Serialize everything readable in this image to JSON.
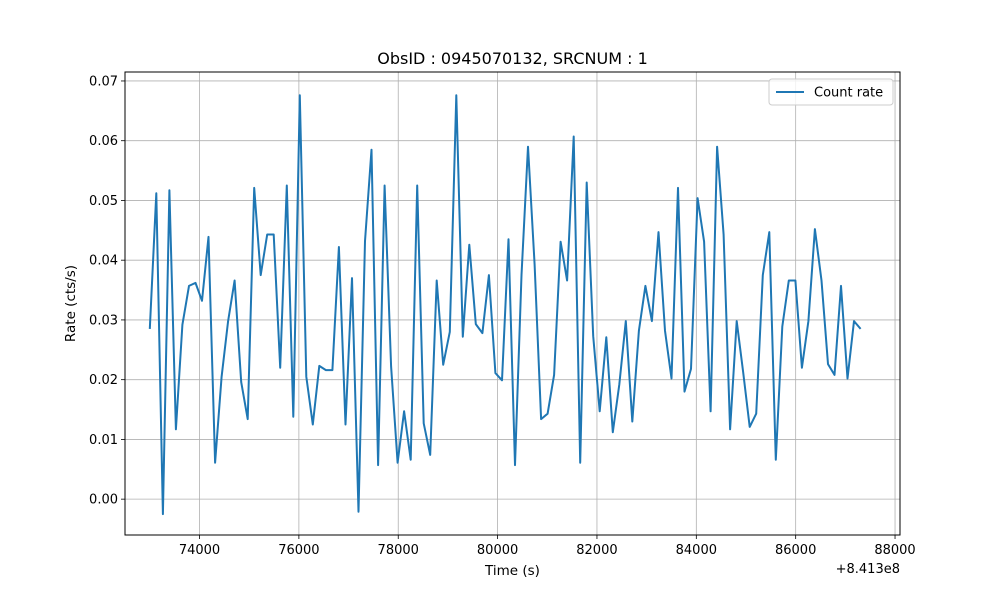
{
  "chart_data": {
    "type": "line",
    "title": "ObsID : 0945070132, SRCNUM : 1",
    "xlabel": "Time (s)",
    "ylabel": "Rate (cts/s)",
    "x_offset_label": "+8.413e8",
    "xlim": [
      72500,
      88100
    ],
    "ylim": [
      -0.006,
      0.0715
    ],
    "xticks": [
      74000,
      76000,
      78000,
      80000,
      82000,
      84000,
      86000,
      88000
    ],
    "xtick_labels": [
      "74000",
      "76000",
      "78000",
      "80000",
      "82000",
      "84000",
      "86000",
      "88000"
    ],
    "yticks": [
      0.0,
      0.01,
      0.02,
      0.03,
      0.04,
      0.05,
      0.06,
      0.07
    ],
    "ytick_labels": [
      "0.00",
      "0.01",
      "0.02",
      "0.03",
      "0.04",
      "0.05",
      "0.06",
      "0.07"
    ],
    "grid": true,
    "legend_position": "top-right",
    "series": [
      {
        "name": "Count rate",
        "color": "#1f77b4",
        "x": [
          73000,
          73131,
          73262,
          73394,
          73525,
          73656,
          73788,
          73919,
          74050,
          74181,
          74313,
          74444,
          74575,
          74706,
          74838,
          74969,
          75100,
          75231,
          75363,
          75494,
          75625,
          75756,
          75888,
          76019,
          76150,
          76281,
          76412,
          76544,
          76675,
          76806,
          76938,
          77069,
          77200,
          77331,
          77462,
          77594,
          77725,
          77856,
          77988,
          78119,
          78250,
          78381,
          78512,
          78644,
          78775,
          78906,
          79038,
          79169,
          79300,
          79431,
          79562,
          79694,
          79825,
          79956,
          80088,
          80219,
          80350,
          80481,
          80612,
          80744,
          80875,
          81006,
          81138,
          81269,
          81400,
          81531,
          81662,
          81794,
          81925,
          82056,
          82188,
          82319,
          82450,
          82581,
          82712,
          82844,
          82975,
          83106,
          83238,
          83369,
          83500,
          83631,
          83762,
          83894,
          84025,
          84156,
          84288,
          84419,
          84550,
          84681,
          84812,
          84944,
          85075,
          85206,
          85338,
          85469,
          85600,
          85731,
          85862,
          85994,
          86125,
          86256,
          86388,
          86519,
          86650,
          86781,
          86912,
          87044,
          87175,
          87306
        ],
        "y": [
          0.0285,
          0.0512,
          -0.0025,
          0.0517,
          0.0117,
          0.0292,
          0.0357,
          0.0362,
          0.0332,
          0.0439,
          0.0061,
          0.0205,
          0.0298,
          0.0366,
          0.0196,
          0.0134,
          0.0521,
          0.0375,
          0.0443,
          0.0443,
          0.022,
          0.0525,
          0.0138,
          0.0676,
          0.0205,
          0.0125,
          0.0223,
          0.0216,
          0.0216,
          0.0422,
          0.0125,
          0.037,
          -0.0021,
          0.0432,
          0.0585,
          0.0057,
          0.0525,
          0.0222,
          0.0061,
          0.0147,
          0.0066,
          0.0525,
          0.0127,
          0.0074,
          0.0366,
          0.0225,
          0.028,
          0.0676,
          0.0272,
          0.0426,
          0.0293,
          0.0278,
          0.0375,
          0.0211,
          0.0199,
          0.0435,
          0.0057,
          0.0375,
          0.059,
          0.0393,
          0.0134,
          0.0143,
          0.0208,
          0.0431,
          0.0366,
          0.0607,
          0.0061,
          0.053,
          0.0273,
          0.0147,
          0.0271,
          0.0112,
          0.0192,
          0.0298,
          0.013,
          0.0282,
          0.0357,
          0.0298,
          0.0447,
          0.0282,
          0.0202,
          0.0521,
          0.018,
          0.0218,
          0.0504,
          0.0431,
          0.0147,
          0.059,
          0.0443,
          0.0117,
          0.0298,
          0.0212,
          0.0121,
          0.0143,
          0.0375,
          0.0447,
          0.0066,
          0.0289,
          0.0366,
          0.0366,
          0.022,
          0.0298,
          0.0452,
          0.0366,
          0.0226,
          0.0208,
          0.0357,
          0.0202,
          0.0298,
          0.0285
        ]
      }
    ]
  }
}
